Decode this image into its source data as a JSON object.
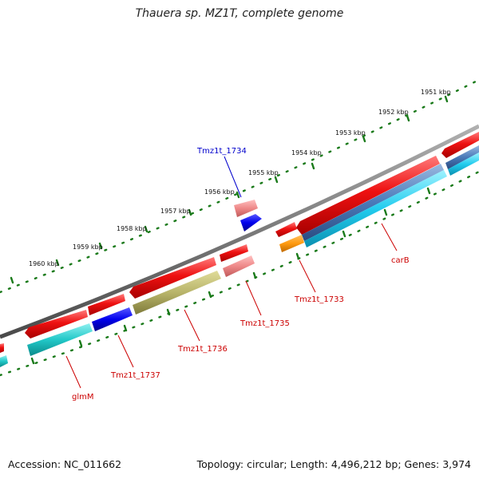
{
  "title": "Thauera sp. MZ1T, complete genome",
  "footer": {
    "accession": "Accession: NC_011662",
    "summary": "Topology: circular; Length: 4,496,212 bp; Genes: 3,974"
  },
  "ruler": {
    "unit": "kbp",
    "ticks": [
      {
        "label": "1951 kbp"
      },
      {
        "label": "1952 kbp"
      },
      {
        "label": "1953 kbp"
      },
      {
        "label": "1954 kbp"
      },
      {
        "label": "1955 kbp"
      },
      {
        "label": "1956 kbp"
      },
      {
        "label": "1957 kbp"
      },
      {
        "label": "1958 kbp"
      },
      {
        "label": "1959 kbp"
      },
      {
        "label": "1960 kbp"
      }
    ]
  },
  "gene_labels": [
    {
      "text": "Tmz1t_1734",
      "color": "#0000cc"
    },
    {
      "text": "carB",
      "color": "#cc0000"
    },
    {
      "text": "Tmz1t_1733",
      "color": "#cc0000"
    },
    {
      "text": "Tmz1t_1735",
      "color": "#cc0000"
    },
    {
      "text": "Tmz1t_1736",
      "color": "#cc0000"
    },
    {
      "text": "Tmz1t_1737",
      "color": "#cc0000"
    },
    {
      "text": "glmM",
      "color": "#cc0000"
    }
  ],
  "colors": {
    "backbone": "#777777",
    "cds": "#ee1111",
    "tick": "#1a7a1a"
  }
}
